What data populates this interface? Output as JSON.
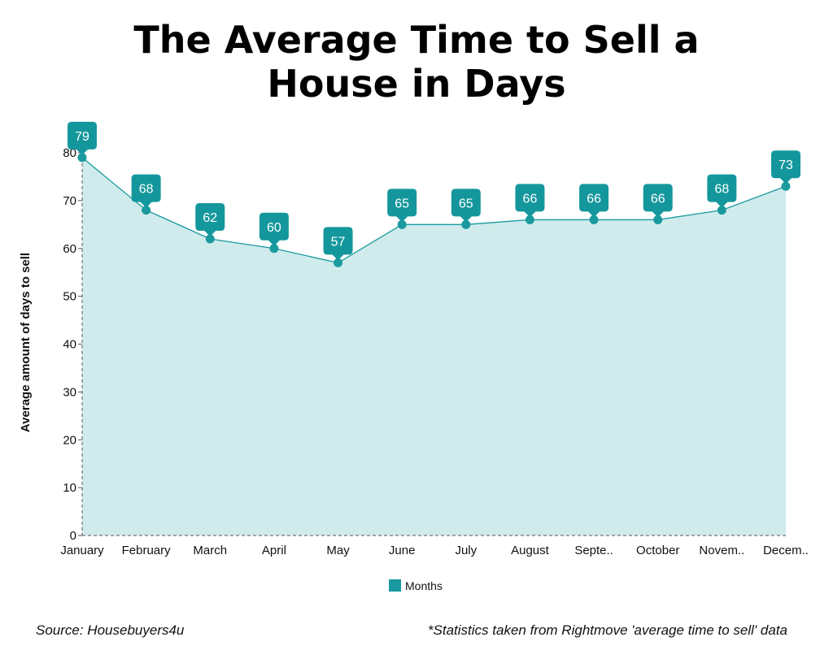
{
  "title_line1": "The Average Time to Sell a",
  "title_line2": "House in Days",
  "source": "Source: Housebuyers4u",
  "note": "*Statistics taken from Rightmove 'average time to sell' data",
  "chart_data": {
    "type": "area",
    "categories": [
      "January",
      "February",
      "March",
      "April",
      "May",
      "June",
      "July",
      "August",
      "Septe..",
      "October",
      "Novem..",
      "Decem.."
    ],
    "series": [
      {
        "name": "Months",
        "values": [
          79,
          68,
          62,
          60,
          57,
          65,
          65,
          66,
          66,
          66,
          68,
          73
        ]
      }
    ],
    "ylabel": "Average amount of days to sell",
    "xlabel": "",
    "ylim": [
      0,
      80
    ],
    "yticks": [
      0,
      10,
      20,
      30,
      40,
      50,
      60,
      70,
      80
    ],
    "grid": false,
    "legend": "bottom",
    "colors": {
      "line": "#1a9a9f",
      "fill": "#cfebec",
      "marker": "#1a9a9f",
      "label_bg": "#14979c"
    }
  }
}
